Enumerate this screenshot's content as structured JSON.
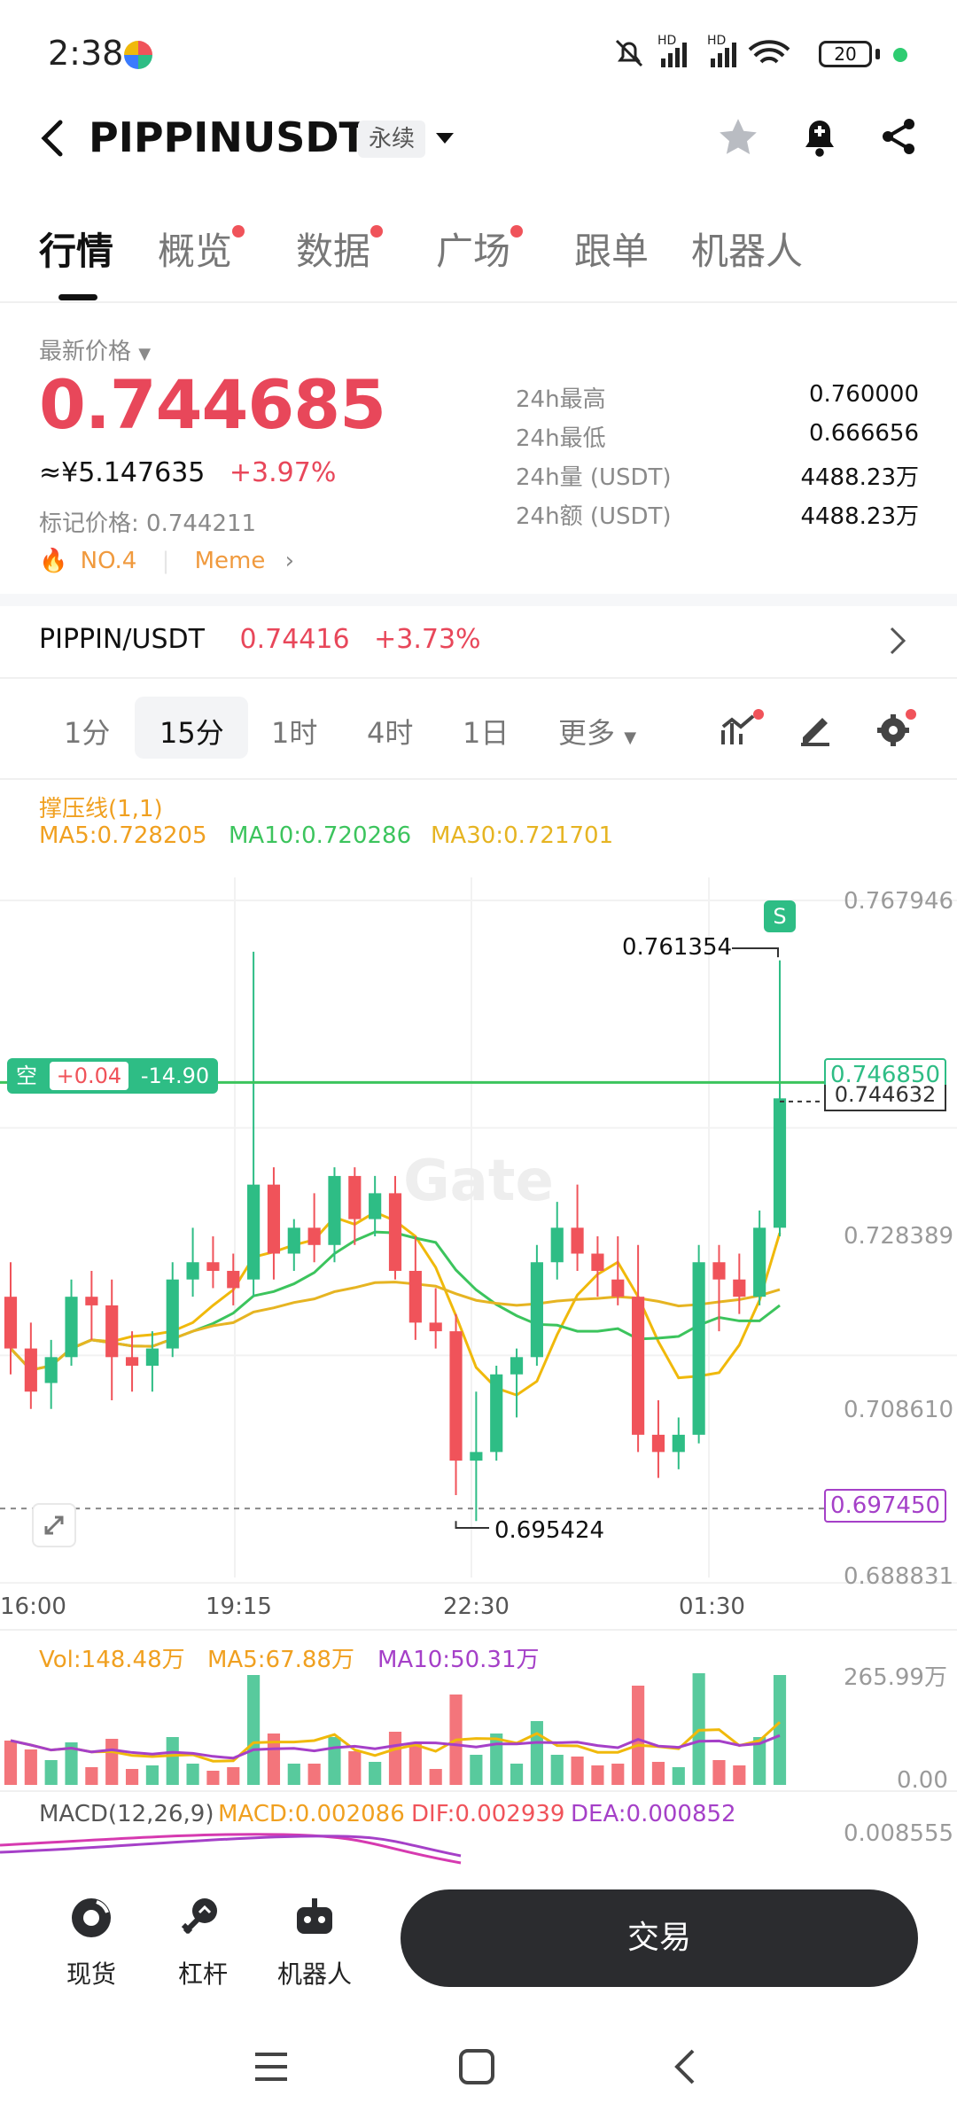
{
  "status_bar": {
    "time": "2:38",
    "battery": "20"
  },
  "header": {
    "title": "PIPPINUSDT",
    "tag": "永续"
  },
  "tabs": [
    {
      "label": "行情",
      "active": true,
      "dot": false
    },
    {
      "label": "概览",
      "active": false,
      "dot": true
    },
    {
      "label": "数据",
      "active": false,
      "dot": true
    },
    {
      "label": "广场",
      "active": false,
      "dot": true
    },
    {
      "label": "跟单",
      "active": false,
      "dot": false
    },
    {
      "label": "机器人",
      "active": false,
      "dot": false
    }
  ],
  "price": {
    "label": "最新价格",
    "last": "0.744685",
    "cny": "≈¥5.147635",
    "change": "+3.97%",
    "mark_label": "标记价格: ",
    "mark_value": "0.744211",
    "rank": "NO.4",
    "category": "Meme"
  },
  "stats": [
    {
      "k": "24h最高",
      "v": "0.760000"
    },
    {
      "k": "24h最低",
      "v": "0.666656"
    },
    {
      "k": "24h量 (USDT)",
      "v": "4488.23万"
    },
    {
      "k": "24h额 (USDT)",
      "v": "4488.23万"
    }
  ],
  "spot": {
    "pair": "PIPPIN/USDT",
    "price": "0.74416",
    "change": "+3.73%"
  },
  "timeframes": [
    "1分",
    "15分",
    "1时",
    "4时",
    "1日",
    "更多"
  ],
  "active_timeframe": "15分",
  "chart": {
    "indicator_title": "撑压线(1,1)",
    "ma5": "MA5:0.728205",
    "ma10": "MA10:0.720286",
    "ma30": "MA30:0.721701",
    "y_labels": [
      "0.767946",
      "0.728389",
      "0.708610",
      "0.688831"
    ],
    "x_labels": [
      "16:00",
      "19:15",
      "22:30",
      "01:30"
    ],
    "high_marker": "0.761354",
    "low_marker": "0.695424",
    "current_price_tag": "0.744632",
    "resistance_tag": "0.746850",
    "support_tag": "0.697450",
    "position": {
      "side": "空",
      "pnl": "+0.04",
      "pct": "-14.90"
    },
    "signal": "S",
    "watermark": "Gate",
    "colors": {
      "up": "#2ebd85",
      "down": "#f0535a",
      "ma5": "#f0b90b",
      "ma10": "#3cc45d",
      "ma30": "#e6b422"
    }
  },
  "chart_data": {
    "type": "candlestick",
    "ylim": [
      0.688831,
      0.767946
    ],
    "candles_ohlc": [
      [
        0.722,
        0.726,
        0.713,
        0.716
      ],
      [
        0.716,
        0.719,
        0.709,
        0.711
      ],
      [
        0.712,
        0.717,
        0.709,
        0.715
      ],
      [
        0.715,
        0.724,
        0.714,
        0.722
      ],
      [
        0.722,
        0.725,
        0.717,
        0.721
      ],
      [
        0.721,
        0.724,
        0.71,
        0.715
      ],
      [
        0.715,
        0.718,
        0.711,
        0.714
      ],
      [
        0.714,
        0.718,
        0.711,
        0.716
      ],
      [
        0.716,
        0.726,
        0.715,
        0.724
      ],
      [
        0.724,
        0.73,
        0.722,
        0.726
      ],
      [
        0.726,
        0.729,
        0.723,
        0.725
      ],
      [
        0.725,
        0.727,
        0.721,
        0.723
      ],
      [
        0.724,
        0.762,
        0.722,
        0.735
      ],
      [
        0.735,
        0.737,
        0.724,
        0.727
      ],
      [
        0.727,
        0.731,
        0.725,
        0.73
      ],
      [
        0.73,
        0.734,
        0.726,
        0.728
      ],
      [
        0.728,
        0.737,
        0.726,
        0.736
      ],
      [
        0.736,
        0.737,
        0.728,
        0.731
      ],
      [
        0.731,
        0.736,
        0.729,
        0.734
      ],
      [
        0.734,
        0.736,
        0.724,
        0.725
      ],
      [
        0.725,
        0.729,
        0.717,
        0.719
      ],
      [
        0.719,
        0.723,
        0.716,
        0.718
      ],
      [
        0.718,
        0.72,
        0.699,
        0.703
      ],
      [
        0.703,
        0.711,
        0.696,
        0.704
      ],
      [
        0.704,
        0.714,
        0.703,
        0.713
      ],
      [
        0.713,
        0.716,
        0.708,
        0.715
      ],
      [
        0.715,
        0.728,
        0.714,
        0.726
      ],
      [
        0.726,
        0.733,
        0.724,
        0.73
      ],
      [
        0.73,
        0.735,
        0.725,
        0.727
      ],
      [
        0.727,
        0.729,
        0.722,
        0.725
      ],
      [
        0.724,
        0.729,
        0.721,
        0.722
      ],
      [
        0.722,
        0.728,
        0.704,
        0.706
      ],
      [
        0.706,
        0.71,
        0.701,
        0.704
      ],
      [
        0.704,
        0.708,
        0.702,
        0.706
      ],
      [
        0.706,
        0.728,
        0.705,
        0.726
      ],
      [
        0.726,
        0.728,
        0.718,
        0.724
      ],
      [
        0.724,
        0.727,
        0.72,
        0.722
      ],
      [
        0.722,
        0.732,
        0.721,
        0.73
      ],
      [
        0.73,
        0.761,
        0.729,
        0.745
      ]
    ],
    "volume": {
      "max_label": "265.99万",
      "min_label": "0.00",
      "vol": "Vol:148.48万",
      "ma5": "MA5:67.88万",
      "ma10": "MA10:50.31万"
    },
    "macd": {
      "title": "MACD(12,26,9)",
      "macd": "MACD:0.002086",
      "dif": "DIF:0.002939",
      "dea": "DEA:0.000852",
      "top_label": "0.008555"
    }
  },
  "bottom_nav": [
    {
      "label": "现货",
      "icon": "spot-icon"
    },
    {
      "label": "杠杆",
      "icon": "margin-icon"
    },
    {
      "label": "机器人",
      "icon": "robot-icon"
    }
  ],
  "trade_button": "交易"
}
